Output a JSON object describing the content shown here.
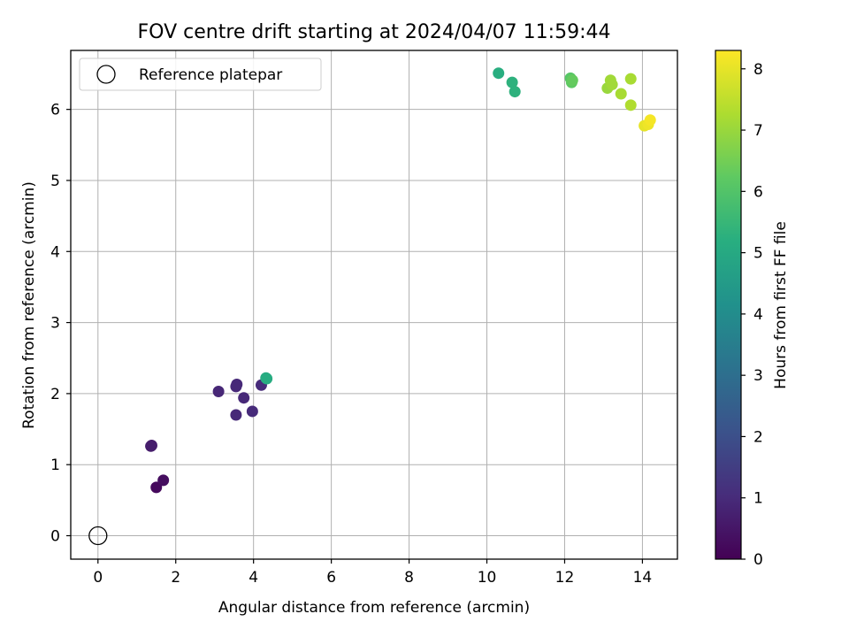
{
  "chart_data": {
    "type": "scatter",
    "title": "FOV centre drift starting at 2024/04/07 11:59:44",
    "xlabel": "Angular distance from reference (arcmin)",
    "ylabel": "Rotation from reference (arcmin)",
    "xlim": [
      -0.7,
      14.9
    ],
    "ylim": [
      -0.33,
      6.83
    ],
    "xticks": [
      0,
      2,
      4,
      6,
      8,
      10,
      12,
      14
    ],
    "yticks": [
      0,
      1,
      2,
      3,
      4,
      5,
      6
    ],
    "grid": true,
    "legend": {
      "position": "top-left",
      "entries": [
        "Reference platepar"
      ]
    },
    "reference_point": {
      "x": 0,
      "y": 0,
      "label": "Reference platepar"
    },
    "colorbar": {
      "label": "Hours from first FF file",
      "colormap": "viridis",
      "min": 0,
      "max": 8.3,
      "ticks": [
        0,
        1,
        2,
        3,
        4,
        5,
        6,
        7,
        8
      ]
    },
    "series": [
      {
        "name": "FOV centre drift",
        "points": [
          {
            "x": 1.5,
            "y": 0.68,
            "c": 0.2
          },
          {
            "x": 1.68,
            "y": 0.78,
            "c": 0.3
          },
          {
            "x": 1.38,
            "y": 1.27,
            "c": 0.6
          },
          {
            "x": 1.36,
            "y": 1.26,
            "c": 0.65
          },
          {
            "x": 3.1,
            "y": 2.03,
            "c": 0.9
          },
          {
            "x": 3.55,
            "y": 2.1,
            "c": 0.95
          },
          {
            "x": 3.57,
            "y": 2.13,
            "c": 0.95
          },
          {
            "x": 3.75,
            "y": 1.94,
            "c": 0.95
          },
          {
            "x": 3.55,
            "y": 1.7,
            "c": 0.95
          },
          {
            "x": 3.97,
            "y": 1.75,
            "c": 1.0
          },
          {
            "x": 4.2,
            "y": 2.12,
            "c": 1.0
          },
          {
            "x": 4.32,
            "y": 2.22,
            "c": 5.0
          },
          {
            "x": 4.34,
            "y": 2.21,
            "c": 5.1
          },
          {
            "x": 10.3,
            "y": 6.51,
            "c": 5.2
          },
          {
            "x": 10.65,
            "y": 6.38,
            "c": 5.3
          },
          {
            "x": 10.72,
            "y": 6.25,
            "c": 5.3
          },
          {
            "x": 12.15,
            "y": 6.44,
            "c": 6.1
          },
          {
            "x": 12.18,
            "y": 6.38,
            "c": 6.2
          },
          {
            "x": 12.2,
            "y": 6.41,
            "c": 6.3
          },
          {
            "x": 13.1,
            "y": 6.3,
            "c": 7.0
          },
          {
            "x": 13.18,
            "y": 6.41,
            "c": 7.1
          },
          {
            "x": 13.22,
            "y": 6.35,
            "c": 7.1
          },
          {
            "x": 13.45,
            "y": 6.22,
            "c": 7.2
          },
          {
            "x": 13.7,
            "y": 6.43,
            "c": 7.2
          },
          {
            "x": 13.7,
            "y": 6.06,
            "c": 7.3
          },
          {
            "x": 14.05,
            "y": 5.77,
            "c": 8.0
          },
          {
            "x": 14.15,
            "y": 5.79,
            "c": 8.1
          },
          {
            "x": 14.2,
            "y": 5.85,
            "c": 8.2
          }
        ]
      }
    ]
  }
}
